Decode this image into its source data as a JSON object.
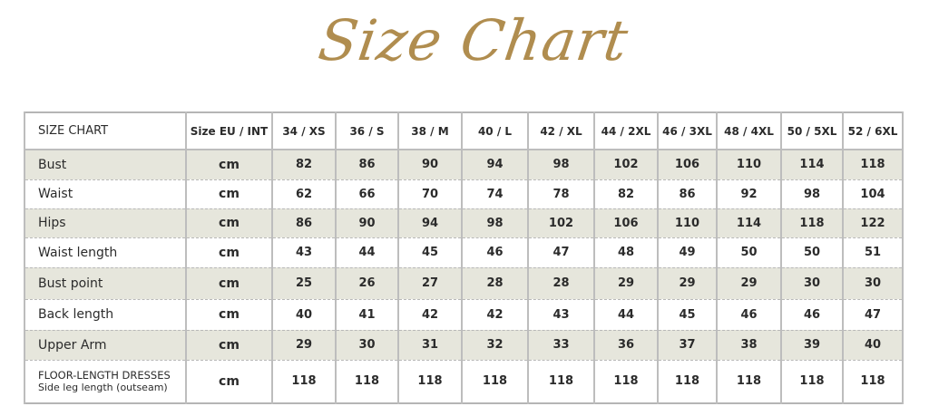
{
  "title": "Size Chart",
  "table": {
    "header": {
      "label": "SIZE CHART",
      "unit_col": "Size EU / INT",
      "sizes": [
        "34 / XS",
        "36 / S",
        "38 / M",
        "40 / L",
        "42 / XL",
        "44 / 2XL",
        "46 / 3XL",
        "48 / 4XL",
        "50 / 5XL",
        "52 / 6XL"
      ]
    },
    "rows": [
      {
        "label": "Bust",
        "unit": "cm",
        "values": [
          "82",
          "86",
          "90",
          "94",
          "98",
          "102",
          "106",
          "110",
          "114",
          "118"
        ]
      },
      {
        "label": "Waist",
        "unit": "cm",
        "values": [
          "62",
          "66",
          "70",
          "74",
          "78",
          "82",
          "86",
          "92",
          "98",
          "104"
        ]
      },
      {
        "label": "Hips",
        "unit": "cm",
        "values": [
          "86",
          "90",
          "94",
          "98",
          "102",
          "106",
          "110",
          "114",
          "118",
          "122"
        ]
      },
      {
        "label": "Waist length",
        "unit": "cm",
        "values": [
          "43",
          "44",
          "45",
          "46",
          "47",
          "48",
          "49",
          "50",
          "50",
          "51"
        ]
      },
      {
        "label": "Bust point",
        "unit": "cm",
        "values": [
          "25",
          "26",
          "27",
          "28",
          "28",
          "29",
          "29",
          "29",
          "30",
          "30"
        ]
      },
      {
        "label": "Back length",
        "unit": "cm",
        "values": [
          "40",
          "41",
          "42",
          "42",
          "43",
          "44",
          "45",
          "46",
          "46",
          "47"
        ]
      },
      {
        "label": "Upper Arm",
        "unit": "cm",
        "values": [
          "29",
          "30",
          "31",
          "32",
          "33",
          "36",
          "37",
          "38",
          "39",
          "40"
        ]
      }
    ],
    "last_row": {
      "label": "FLOOR-LENGTH DRESSES",
      "sublabel": "Side leg length (outseam)",
      "unit": "cm",
      "values": [
        "118",
        "118",
        "118",
        "118",
        "118",
        "118",
        "118",
        "118",
        "118",
        "118"
      ]
    }
  },
  "colors": {
    "title": "#b08d4f",
    "stripe": "#e6e6dc",
    "border": "#bdbdbd"
  }
}
